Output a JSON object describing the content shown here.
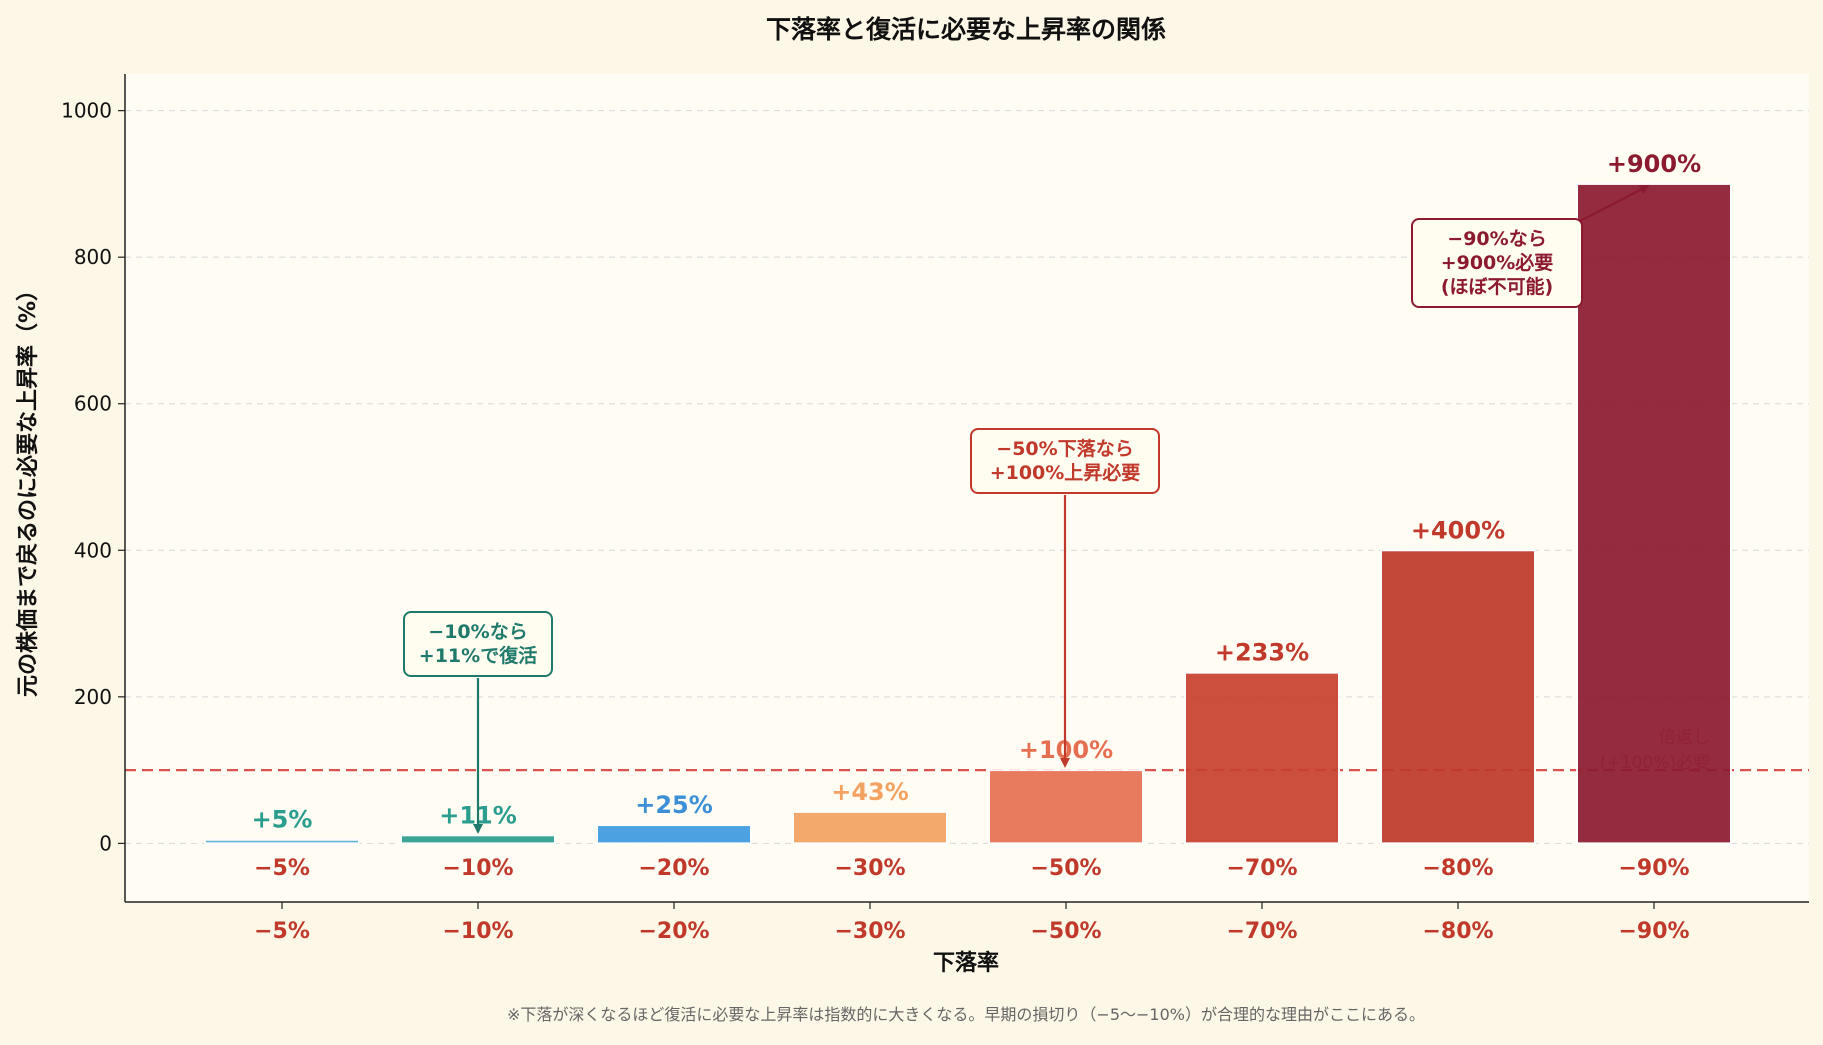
{
  "chart_data": {
    "type": "bar",
    "title": "下落率と復活に必要な上昇率の関係",
    "xlabel": "下落率",
    "ylabel": "元の株価まで戻るのに必要な上昇率（%）",
    "categories": [
      "−5%",
      "−10%",
      "−20%",
      "−30%",
      "−50%",
      "−70%",
      "−80%",
      "−90%"
    ],
    "values": [
      5,
      11,
      25,
      43,
      100,
      233,
      400,
      900
    ],
    "value_labels": [
      "+5%",
      "+11%",
      "+25%",
      "+43%",
      "+100%",
      "+233%",
      "+400%",
      "+900%"
    ],
    "bar_colors": [
      "#5aaed3",
      "#2a9d8f",
      "#3d9be0",
      "#f4a261",
      "#e76f51",
      "#c8412f",
      "#c0392b",
      "#8b1a30"
    ],
    "label_colors": [
      "#2a9d8f",
      "#2a9d8f",
      "#3a8fd6",
      "#f4a261",
      "#e76f51",
      "#c0392b",
      "#c0392b",
      "#8b1a30"
    ],
    "yticks": [
      0,
      200,
      400,
      600,
      800,
      1000
    ],
    "ylim": [
      -80,
      1050
    ],
    "grid": "y-dashed",
    "reference_line": {
      "value": 100,
      "label_line1": "倍返し",
      "label_line2": "(+100%)必要",
      "color": "#d9534f"
    },
    "annotations": [
      {
        "target": 1,
        "lines": [
          "−10%なら",
          "+11%で復活"
        ],
        "color": "#1f7a6b"
      },
      {
        "target": 4,
        "lines": [
          "−50%下落なら",
          "+100%上昇必要"
        ],
        "color": "#c0392b"
      },
      {
        "target": 7,
        "lines": [
          "−90%なら",
          "+900%必要",
          "(ほぼ不可能)"
        ],
        "color": "#8b1a30"
      }
    ]
  },
  "footnote": "※下落が深くなるほど復活に必要な上昇率は指数的に大きくなる。早期の損切り（−5〜−10%）が合理的な理由がここにある。",
  "colors": {
    "page_bg": "#fdf7e7",
    "plot_bg": "#fffcf4",
    "category_text": "#c0392b",
    "grid": "#d8d8d8"
  }
}
